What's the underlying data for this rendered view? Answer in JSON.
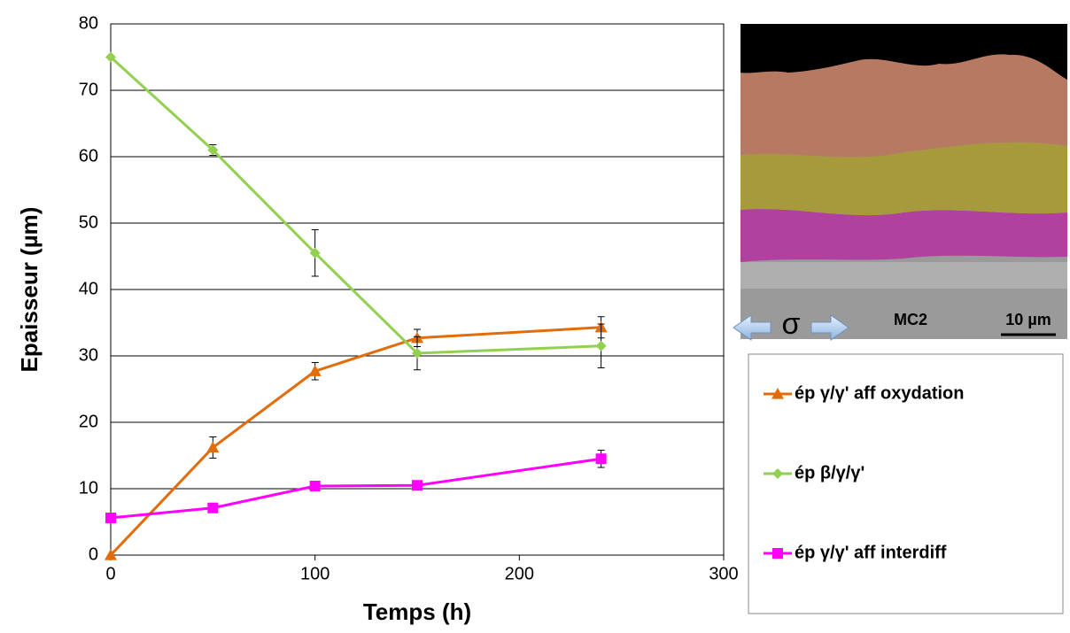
{
  "chart_data": {
    "type": "line",
    "xlabel": "Temps (h)",
    "ylabel": "Epaisseur (µm)",
    "x": [
      0,
      50,
      100,
      150,
      240
    ],
    "series": [
      {
        "name": "ép γ/γ' aff oxydation",
        "color": "#e36c0a",
        "marker": "triangle",
        "values": [
          0,
          16.2,
          27.7,
          32.7,
          34.3
        ],
        "errors": [
          0,
          1.6,
          1.3,
          1.3,
          1.6
        ]
      },
      {
        "name": "ép β/γ/γ'",
        "color": "#92d050",
        "marker": "diamond",
        "values": [
          75,
          61,
          45.5,
          30.4,
          31.5
        ],
        "errors": [
          0,
          0.8,
          3.5,
          2.5,
          3.3
        ]
      },
      {
        "name": "ép γ/γ' aff interdiff",
        "color": "#ff00ff",
        "marker": "square",
        "values": [
          5.6,
          7.1,
          10.4,
          10.5,
          14.5
        ],
        "errors": [
          0,
          0,
          0,
          0,
          1.3
        ]
      }
    ],
    "xlim": [
      0,
      300
    ],
    "xticks": [
      0,
      100,
      200,
      300
    ],
    "ylim": [
      0,
      80
    ],
    "yticks": [
      0,
      10,
      20,
      30,
      40,
      50,
      60,
      70,
      80
    ],
    "grid": true,
    "image_labels": [
      "σ",
      "MC2",
      "10 µm"
    ]
  }
}
